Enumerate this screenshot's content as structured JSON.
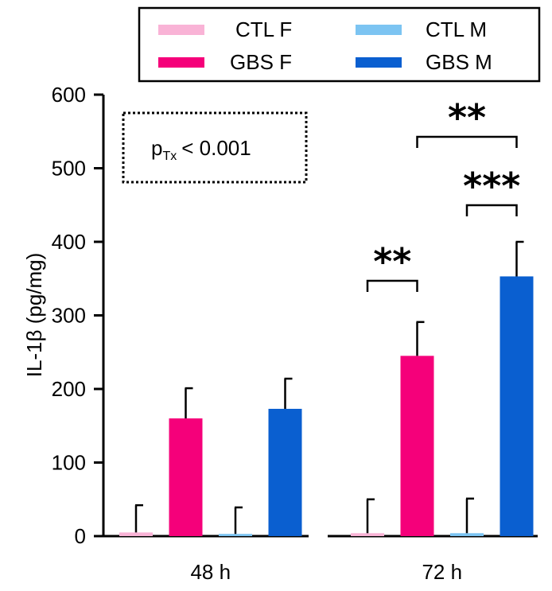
{
  "chart_data": {
    "type": "bar",
    "title": "",
    "xlabel": "",
    "ylabel": "IL-1β (pg/mg)",
    "ylim": [
      0,
      600
    ],
    "yticks": [
      0,
      100,
      200,
      300,
      400,
      500,
      600
    ],
    "categories": [
      "48 h",
      "72 h"
    ],
    "series": [
      {
        "name": "CTL F",
        "color": "#f9b3d6",
        "values": [
          5,
          4
        ],
        "errors": [
          37,
          46
        ]
      },
      {
        "name": "GBS F",
        "color": "#f5007a",
        "values": [
          160,
          245
        ],
        "errors": [
          41,
          46
        ]
      },
      {
        "name": "CTL M",
        "color": "#7cc4f2",
        "values": [
          3,
          4
        ],
        "errors": [
          36,
          47
        ]
      },
      {
        "name": "GBS M",
        "color": "#0a5fd0",
        "values": [
          173,
          353
        ],
        "errors": [
          41,
          47
        ]
      }
    ],
    "annotation": {
      "p_main": "p",
      "p_sub": "Tx",
      "p_rest": "< 0.001"
    },
    "significance": [
      {
        "label": "**",
        "category": "72 h",
        "from_series": "CTL F",
        "to_series": "GBS F"
      },
      {
        "label": "***",
        "category": "72 h",
        "from_series": "CTL M",
        "to_series": "GBS M"
      },
      {
        "label": "**",
        "category": "72 h",
        "from_series": "GBS F",
        "to_series": "GBS M"
      }
    ]
  }
}
